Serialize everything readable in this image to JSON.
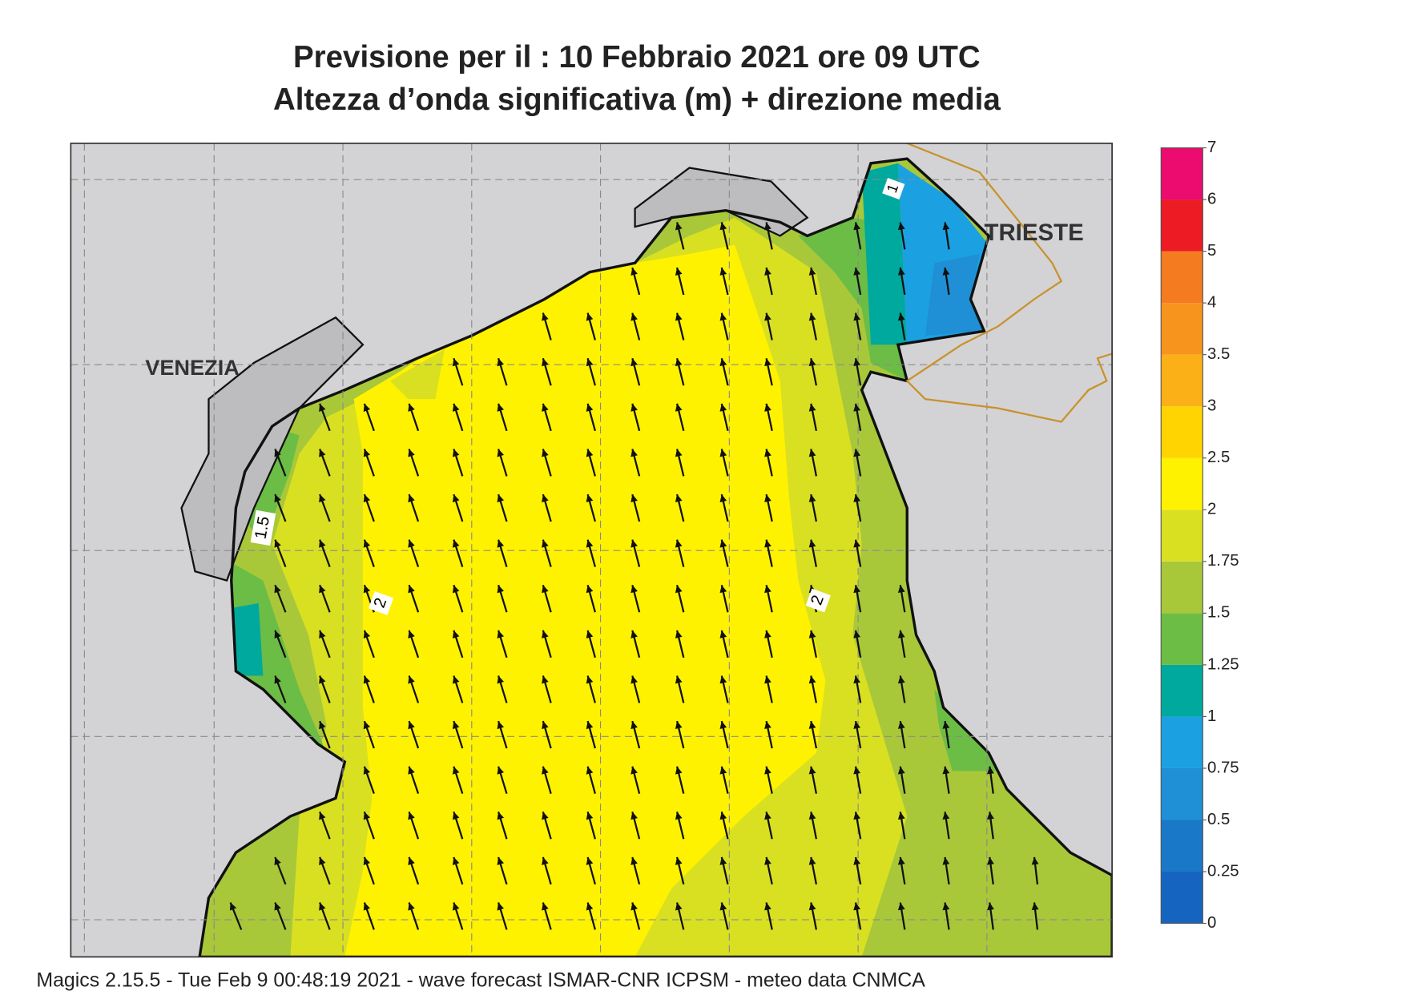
{
  "title": [
    "Previsione per il  :  10  Febbraio 2021   ore 09 UTC",
    "Altezza d’onda significativa (m) + direzione media"
  ],
  "places": [
    "VENEZIA",
    "TRIESTE"
  ],
  "contour_labels": [
    1.5,
    2,
    2,
    1
  ],
  "legend": {
    "levels": [
      0,
      0.25,
      0.5,
      0.75,
      1,
      1.25,
      1.5,
      1.75,
      2,
      2.5,
      3,
      3.5,
      4,
      5,
      6,
      7
    ],
    "colors": [
      "#1565c0",
      "#1a78c8",
      "#1f8fd6",
      "#1ba1e2",
      "#00a99d",
      "#6cbd45",
      "#a8c83a",
      "#d9e021",
      "#fff200",
      "#ffd400",
      "#fbb017",
      "#f7941d",
      "#f47b20",
      "#ed1c24",
      "#ec0b6f"
    ]
  },
  "footer": "Magics 2.15.5 - Tue Feb  9 00:48:19 2021 - wave forecast  ISMAR-CNR  ICPSM - meteo data   CNMCA"
}
